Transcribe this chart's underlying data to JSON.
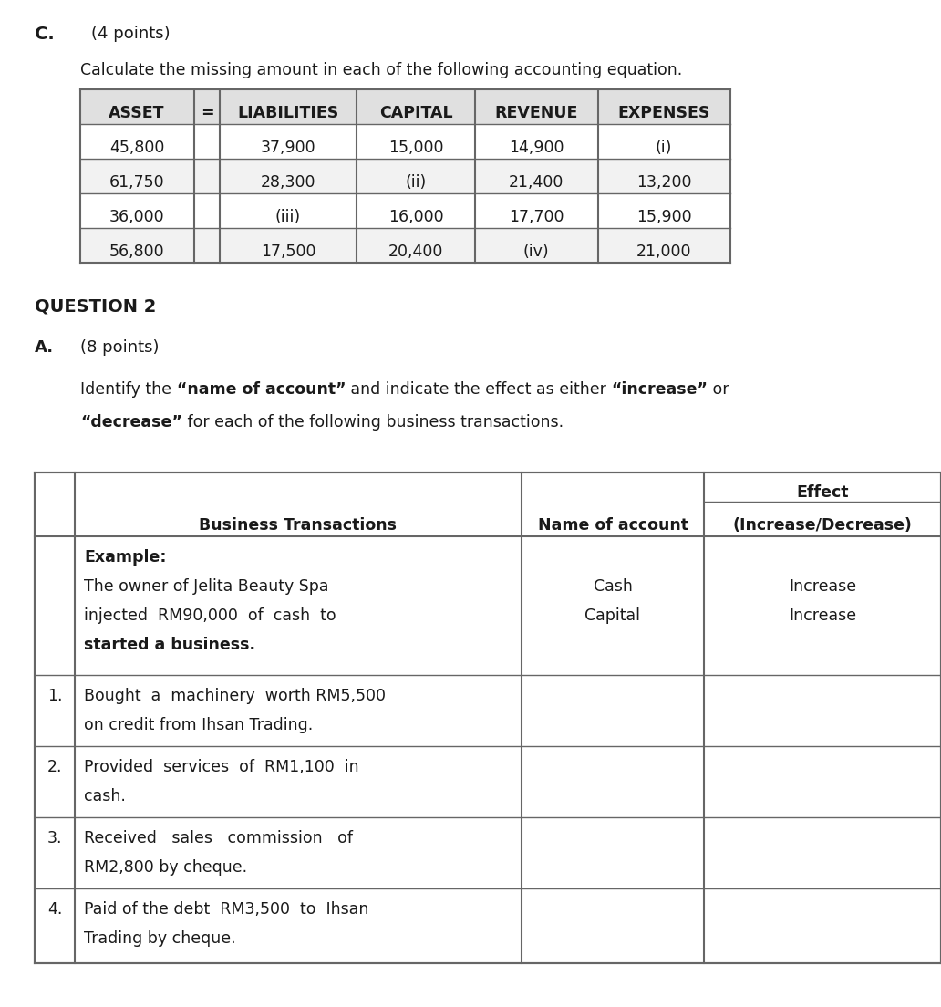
{
  "bg_color": "#ffffff",
  "text_color": "#1a1a1a",
  "border_color": "#666666",
  "font_family": "DejaVu Sans",
  "section_c_label": "C.",
  "section_c_points": "(4 points)",
  "calc_text": "Calculate the missing amount in each of the following accounting equation.",
  "table1_headers": [
    "ASSET",
    "=",
    "LIABILITIES",
    "CAPITAL",
    "REVENUE",
    "EXPENSES"
  ],
  "table1_rows": [
    [
      "45,800",
      "",
      "37,900",
      "15,000",
      "14,900",
      "(i)"
    ],
    [
      "61,750",
      "",
      "28,300",
      "(ii)",
      "21,400",
      "13,200"
    ],
    [
      "36,000",
      "",
      "(iii)",
      "16,000",
      "17,700",
      "15,900"
    ],
    [
      "56,800",
      "",
      "17,500",
      "20,400",
      "(iv)",
      "21,000"
    ]
  ],
  "q2_label": "QUESTION 2",
  "a_label": "A.",
  "a_points": "(8 points)",
  "identify_line1_parts": [
    {
      "text": "Identify the ",
      "bold": false
    },
    {
      "text": "“name of account”",
      "bold": true
    },
    {
      "text": " and indicate the effect as either ",
      "bold": false
    },
    {
      "text": "“increase”",
      "bold": true
    },
    {
      "text": " or",
      "bold": false
    }
  ],
  "identify_line2_parts": [
    {
      "text": "“decrease”",
      "bold": true
    },
    {
      "text": " for each of the following business transactions.",
      "bold": false
    }
  ],
  "t2_hdr_effect": "Effect",
  "t2_hdr_bt": "Business Transactions",
  "t2_hdr_noa": "Name of account",
  "t2_hdr_id": "(Increase/Decrease)",
  "t2_rows": [
    {
      "num": "",
      "trans": [
        "Example:",
        "The owner of Jelita Beauty Spa",
        "injected  RM90,000  of  cash  to",
        "started a business."
      ],
      "trans_bold": [
        true,
        false,
        false,
        true
      ],
      "noa": [
        "",
        "Cash",
        "Capital",
        ""
      ],
      "eff": [
        "",
        "Increase",
        "Increase",
        ""
      ]
    },
    {
      "num": "1.",
      "trans": [
        "Bought  a  machinery  worth RM5,500",
        "on credit from Ihsan Trading."
      ],
      "trans_bold": [
        false,
        false
      ],
      "noa": [],
      "eff": []
    },
    {
      "num": "2.",
      "trans": [
        "Provided  services  of  RM1,100  in",
        "cash."
      ],
      "trans_bold": [
        false,
        false
      ],
      "noa": [],
      "eff": []
    },
    {
      "num": "3.",
      "trans": [
        "Received   sales   commission   of",
        "RM2,800 by cheque."
      ],
      "trans_bold": [
        false,
        false
      ],
      "noa": [],
      "eff": []
    },
    {
      "num": "4.",
      "trans": [
        "Paid of the debt  RM3,500  to  Ihsan",
        "Trading by cheque."
      ],
      "trans_bold": [
        false,
        false
      ],
      "noa": [],
      "eff": []
    }
  ]
}
